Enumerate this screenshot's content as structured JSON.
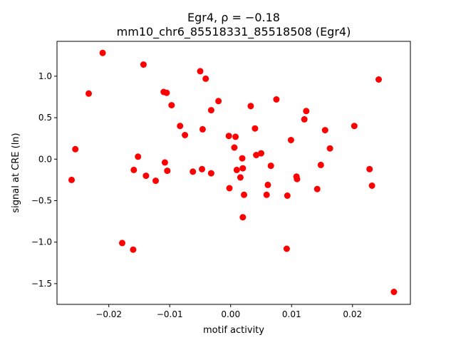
{
  "chart_data": {
    "type": "scatter",
    "title_line1": "Egr4, ρ = −0.18",
    "title_line2": "mm10_chr6_85518331_85518508 (Egr4)",
    "xlabel": "motif activity",
    "ylabel": "signal at CRE (ln)",
    "xlim": [
      -0.0285,
      0.0295
    ],
    "ylim": [
      -1.75,
      1.42
    ],
    "xticks": [
      -0.02,
      -0.01,
      0.0,
      0.01,
      0.02
    ],
    "xtick_labels": [
      "−0.02",
      "−0.01",
      "0.00",
      "0.01",
      "0.02"
    ],
    "yticks": [
      -1.5,
      -1.0,
      -0.5,
      0.0,
      0.5,
      1.0
    ],
    "ytick_labels": [
      "−1.5",
      "−1.0",
      "−0.5",
      "0.0",
      "0.5",
      "1.0"
    ],
    "marker_color": "#ff0000",
    "grid": false,
    "points": [
      {
        "x": -0.0261,
        "y": -0.25
      },
      {
        "x": -0.0255,
        "y": 0.12
      },
      {
        "x": -0.0233,
        "y": 0.79
      },
      {
        "x": -0.021,
        "y": 1.28
      },
      {
        "x": -0.0178,
        "y": -1.01
      },
      {
        "x": -0.016,
        "y": -1.09
      },
      {
        "x": -0.0159,
        "y": -0.13
      },
      {
        "x": -0.0152,
        "y": 0.03
      },
      {
        "x": -0.0143,
        "y": 1.14
      },
      {
        "x": -0.0139,
        "y": -0.2
      },
      {
        "x": -0.0123,
        "y": -0.26
      },
      {
        "x": -0.011,
        "y": 0.81
      },
      {
        "x": -0.0105,
        "y": 0.8
      },
      {
        "x": -0.0104,
        "y": -0.14
      },
      {
        "x": -0.0108,
        "y": -0.04
      },
      {
        "x": -0.0097,
        "y": 0.65
      },
      {
        "x": -0.0083,
        "y": 0.4
      },
      {
        "x": -0.0075,
        "y": 0.29
      },
      {
        "x": -0.0062,
        "y": -0.15
      },
      {
        "x": -0.005,
        "y": 1.06
      },
      {
        "x": -0.0046,
        "y": 0.36
      },
      {
        "x": -0.0047,
        "y": -0.12
      },
      {
        "x": -0.0041,
        "y": 0.97
      },
      {
        "x": -0.0032,
        "y": 0.59
      },
      {
        "x": -0.0032,
        "y": -0.17
      },
      {
        "x": -0.002,
        "y": 0.7
      },
      {
        "x": -0.0003,
        "y": 0.28
      },
      {
        "x": -0.0002,
        "y": -0.35
      },
      {
        "x": 0.0008,
        "y": 0.27
      },
      {
        "x": 0.0006,
        "y": 0.14
      },
      {
        "x": 0.001,
        "y": -0.13
      },
      {
        "x": 0.0016,
        "y": -0.22
      },
      {
        "x": 0.0019,
        "y": 0.01
      },
      {
        "x": 0.002,
        "y": -0.11
      },
      {
        "x": 0.0022,
        "y": -0.43
      },
      {
        "x": 0.002,
        "y": -0.7
      },
      {
        "x": 0.0033,
        "y": 0.64
      },
      {
        "x": 0.004,
        "y": 0.37
      },
      {
        "x": 0.0042,
        "y": 0.05
      },
      {
        "x": 0.005,
        "y": 0.07
      },
      {
        "x": 0.0059,
        "y": -0.43
      },
      {
        "x": 0.0061,
        "y": -0.31
      },
      {
        "x": 0.0066,
        "y": -0.08
      },
      {
        "x": 0.0075,
        "y": 0.72
      },
      {
        "x": 0.0093,
        "y": -0.44
      },
      {
        "x": 0.0092,
        "y": -1.08
      },
      {
        "x": 0.0099,
        "y": 0.23
      },
      {
        "x": 0.0108,
        "y": -0.21
      },
      {
        "x": 0.0109,
        "y": -0.24
      },
      {
        "x": 0.0121,
        "y": 0.48
      },
      {
        "x": 0.0124,
        "y": 0.58
      },
      {
        "x": 0.0142,
        "y": -0.36
      },
      {
        "x": 0.0148,
        "y": -0.07
      },
      {
        "x": 0.0155,
        "y": 0.35
      },
      {
        "x": 0.0163,
        "y": 0.13
      },
      {
        "x": 0.0203,
        "y": 0.4
      },
      {
        "x": 0.0228,
        "y": -0.12
      },
      {
        "x": 0.0232,
        "y": -0.32
      },
      {
        "x": 0.0243,
        "y": 0.96
      },
      {
        "x": 0.0268,
        "y": -1.6
      }
    ]
  }
}
